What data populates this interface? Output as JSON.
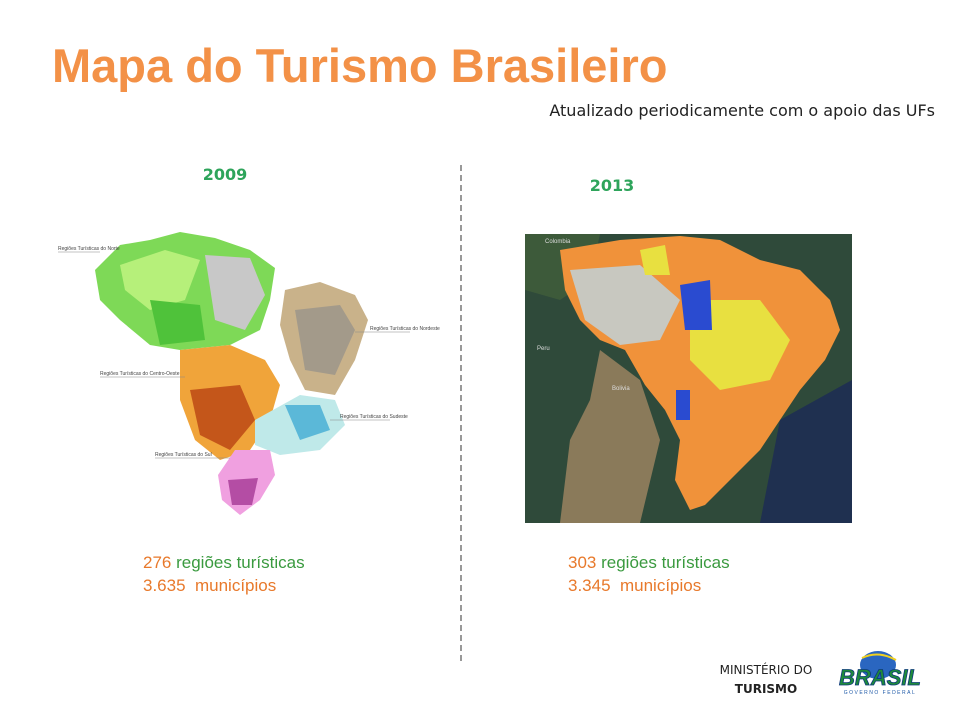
{
  "header": {
    "title": "Mapa do Turismo Brasileiro",
    "subtitle": "Atualizado periodicamente com o apoio das UFs"
  },
  "panels": [
    {
      "year": "2009",
      "map_labels": [
        "Regiões Turísticas do Norte",
        "Regiões Turísticas do Nordeste",
        "Regiões Turísticas do Centro-Oeste",
        "Regiões Turísticas do Sudeste",
        "Regiões Turísticas do Sul"
      ],
      "regions_count": "276",
      "regions_text": "regiões turísticas",
      "municipalities": "3.635  municípios"
    },
    {
      "year": "2013",
      "map_labels": [
        "Colombia",
        "Peru",
        "Bolivia"
      ],
      "regions_count": "303",
      "regions_text": "regiões turísticas",
      "municipalities": "3.345  municípios"
    }
  ],
  "footer": {
    "ministry_line1": "MINISTÉRIO DO",
    "ministry_line2": "TURISMO",
    "logo_text": "BRASIL",
    "logo_subtext": "GOVERNO FEDERAL"
  }
}
